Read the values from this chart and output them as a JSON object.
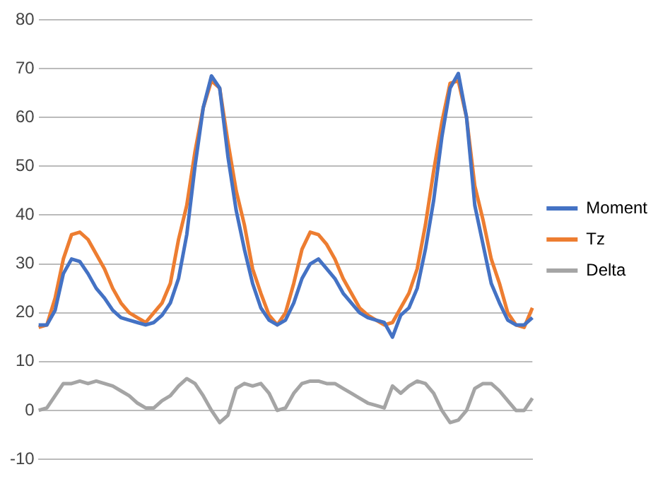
{
  "chart_data": {
    "type": "line",
    "categories": [
      null,
      null,
      null,
      null,
      null,
      null,
      null,
      null,
      null,
      null,
      null,
      null,
      null,
      null,
      null,
      null,
      null,
      null,
      null,
      null,
      null,
      null,
      null,
      null,
      null,
      null,
      null,
      null,
      null,
      null,
      null,
      null,
      null,
      null,
      null,
      null,
      null,
      null,
      null,
      null,
      null,
      null,
      null,
      null,
      null,
      null,
      null,
      null,
      null,
      null,
      null,
      null,
      null,
      null,
      null,
      null,
      null,
      null,
      null,
      null,
      null
    ],
    "series": [
      {
        "name": "Moment",
        "color": "#4472c4",
        "values": [
          17.5,
          17.5,
          20.5,
          28,
          31,
          30.5,
          28,
          25,
          23,
          20.5,
          19,
          18.5,
          18,
          17.5,
          18,
          19.5,
          22,
          27,
          36,
          50,
          62,
          68.5,
          66,
          52,
          41,
          33,
          26,
          21,
          18.5,
          17.5,
          18.5,
          22,
          27,
          30,
          31,
          29,
          27,
          24,
          22,
          20,
          19,
          18.5,
          18,
          15,
          19.5,
          21,
          25,
          33,
          43,
          56,
          66,
          69,
          60,
          42,
          34,
          26,
          22,
          18.5,
          17.5,
          17.5,
          19
        ]
      },
      {
        "name": "Tz",
        "color": "#ed7d31",
        "values": [
          17,
          17.5,
          23,
          31,
          36,
          36.5,
          35,
          32,
          29,
          25,
          22,
          20,
          19,
          18,
          20,
          22,
          26,
          35,
          42,
          53,
          62,
          67.5,
          66,
          55,
          45,
          38,
          29,
          24,
          19.5,
          17.5,
          20,
          26,
          33,
          36.5,
          36,
          34,
          31,
          27,
          24,
          21,
          19.5,
          18.5,
          17.5,
          18,
          21,
          24,
          29,
          38,
          49,
          59,
          67,
          67.5,
          60,
          46,
          39,
          31,
          26,
          20,
          17.5,
          17,
          21
        ]
      },
      {
        "name": "Delta",
        "color": "#a5a5a5",
        "values": [
          0,
          0.5,
          3,
          5.5,
          5.5,
          6,
          5.5,
          6,
          5.5,
          5,
          4,
          3,
          1.5,
          0.5,
          0.5,
          2,
          3,
          5,
          6.5,
          5.5,
          3,
          0,
          -2.5,
          -1,
          4.5,
          5.5,
          5,
          5.5,
          3.5,
          0,
          0.5,
          3.5,
          5.5,
          6,
          6,
          5.5,
          5.5,
          4.5,
          3.5,
          2.5,
          1.5,
          1,
          0.5,
          5,
          3.5,
          5,
          6,
          5.5,
          3.5,
          0,
          -2.5,
          -2,
          0,
          4.5,
          5.5,
          5.5,
          4,
          2,
          0,
          0,
          2.5
        ]
      }
    ],
    "ylim": [
      -10,
      80
    ],
    "yticks": [
      -10,
      0,
      10,
      20,
      30,
      40,
      50,
      60,
      70,
      80
    ],
    "grid": "y",
    "legend": "right",
    "tick_labels": "y",
    "marker": "none",
    "line_style": "solid"
  }
}
